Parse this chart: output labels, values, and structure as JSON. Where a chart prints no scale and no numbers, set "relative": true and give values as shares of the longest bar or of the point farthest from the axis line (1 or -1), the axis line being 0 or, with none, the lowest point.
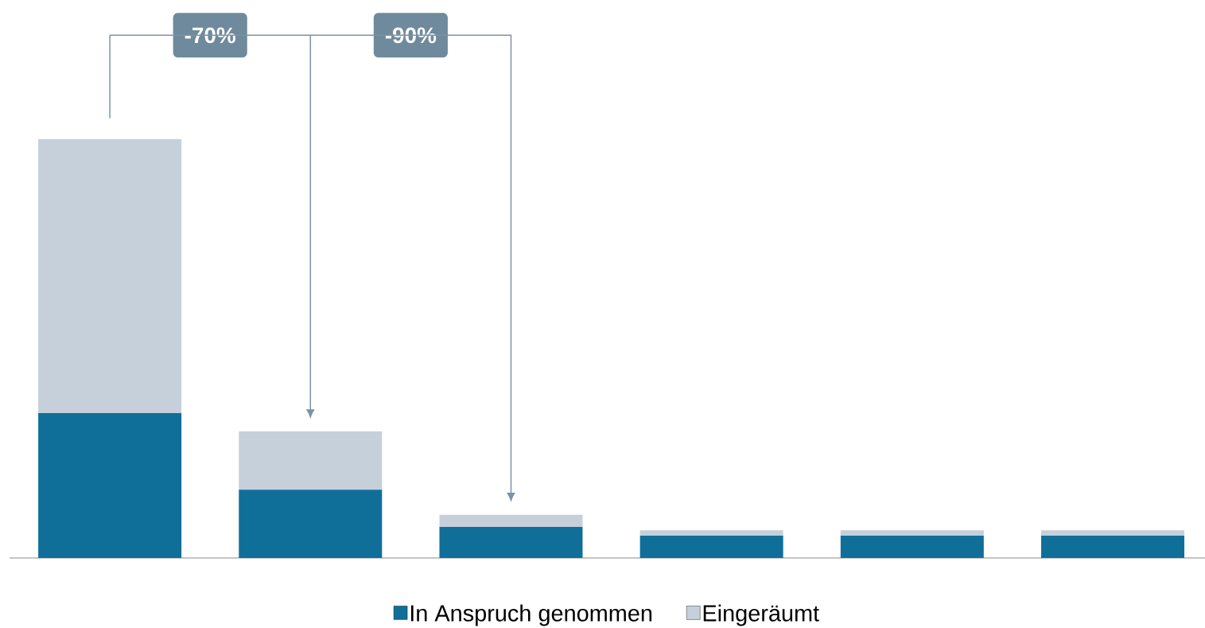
{
  "chart_data": {
    "type": "bar",
    "stacked": true,
    "relative": true,
    "categories": [
      null,
      null,
      null,
      null,
      null,
      null
    ],
    "series": [
      {
        "name": "In Anspruch genommen",
        "color": "#0f6f99",
        "values": [
          0.346,
          0.163,
          0.074,
          0.053,
          0.053,
          0.053
        ]
      },
      {
        "name": "Eingeräumt",
        "color": "#c5d0da",
        "values": [
          0.654,
          0.139,
          0.029,
          0.013,
          0.013,
          0.013
        ]
      }
    ],
    "annotations": [
      "-70%",
      "-90%"
    ],
    "legend": "bottom"
  }
}
